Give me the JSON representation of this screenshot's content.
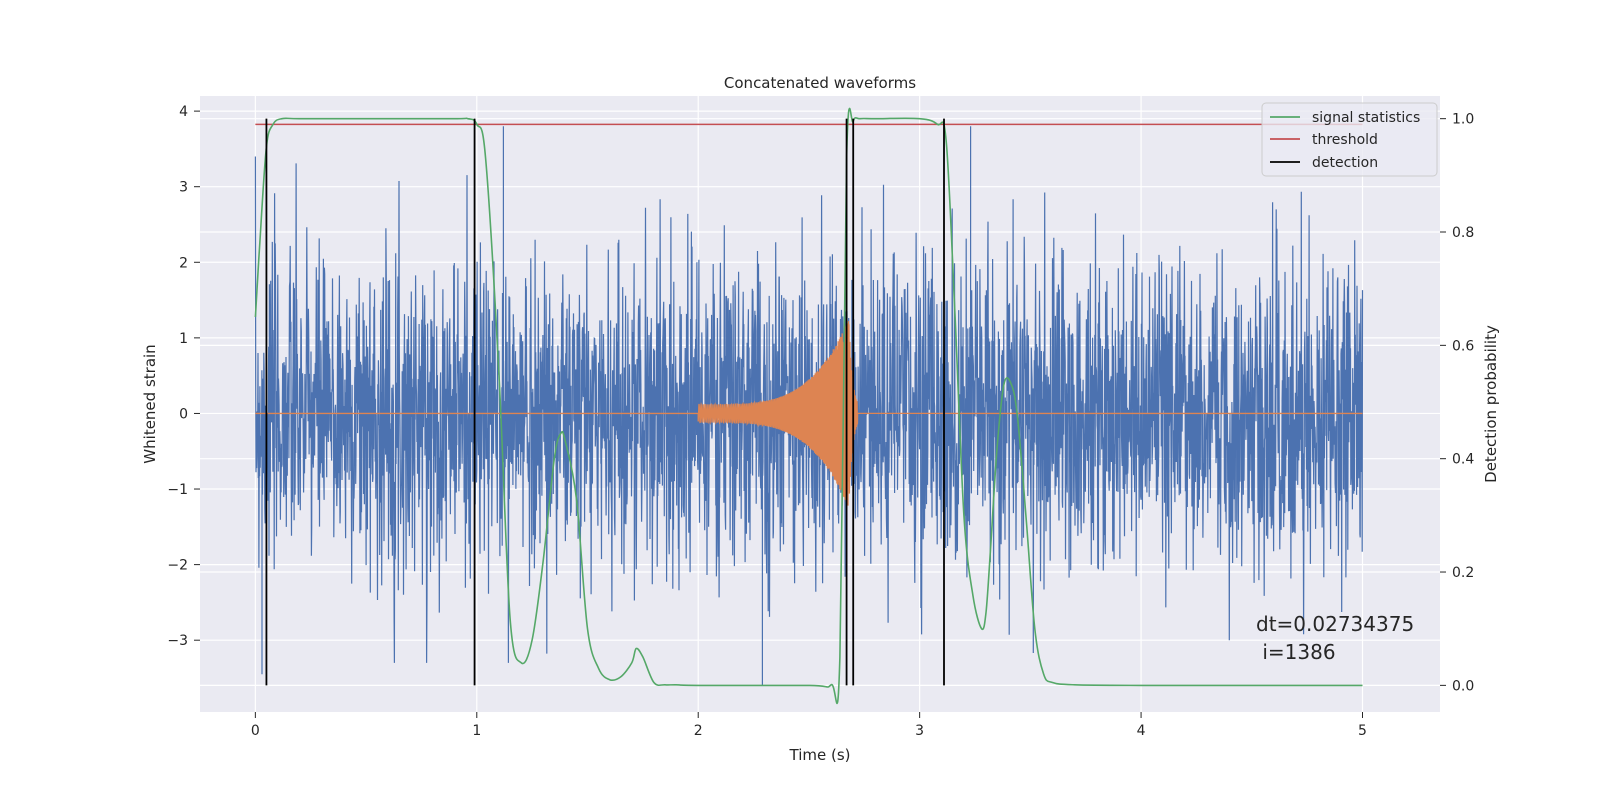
{
  "chart_data": {
    "type": "line",
    "title": "Concatenated waveforms",
    "xlabel": "Time (s)",
    "ylabel": "Whitened strain",
    "y2label": "Detection probability",
    "xlim": [
      -0.25,
      5.35
    ],
    "ylim": [
      -3.95,
      4.2
    ],
    "y2lim": [
      -0.047,
      1.04
    ],
    "x_ticks": [
      0,
      1,
      2,
      3,
      4,
      5
    ],
    "y_ticks": [
      -3,
      -2,
      -1,
      0,
      1,
      2,
      3,
      4
    ],
    "y2_ticks": [
      0.0,
      0.2,
      0.4,
      0.6,
      0.8,
      1.0
    ],
    "x_tick_labels": [
      "0",
      "1",
      "2",
      "3",
      "4",
      "5"
    ],
    "y_tick_labels": [
      "−3",
      "−2",
      "−1",
      "0",
      "1",
      "2",
      "3",
      "4"
    ],
    "y2_tick_labels": [
      "0.0",
      "0.2",
      "0.4",
      "0.6",
      "0.8",
      "1.0"
    ],
    "grid": true,
    "legend_position": "top-right",
    "colors": {
      "strain": "#4c72b0",
      "signal": "#dd8452",
      "statistics": "#55a868",
      "threshold": "#c44e52",
      "detection": "#000000",
      "background": "#eaeaf2",
      "grid": "#ffffff"
    },
    "series": [
      {
        "name": "signal statistics",
        "axis": "right",
        "color": "#55a868",
        "x": [
          0.0,
          0.02,
          0.05,
          0.08,
          0.12,
          0.2,
          0.5,
          0.9,
          0.96,
          1.0,
          1.04,
          1.1,
          1.15,
          1.2,
          1.25,
          1.3,
          1.35,
          1.38,
          1.4,
          1.45,
          1.5,
          1.55,
          1.6,
          1.65,
          1.7,
          1.72,
          1.75,
          1.8,
          1.85,
          1.9,
          2.0,
          2.5,
          2.6,
          2.64,
          2.67,
          2.7,
          2.73,
          2.8,
          3.0,
          3.08,
          3.12,
          3.16,
          3.2,
          3.24,
          3.28,
          3.3,
          3.32,
          3.35,
          3.38,
          3.41,
          3.44,
          3.48,
          3.52,
          3.56,
          3.6,
          3.7,
          4.0,
          4.5,
          5.0
        ],
        "y": [
          0.65,
          0.78,
          0.95,
          0.99,
          1.0,
          1.0,
          1.0,
          1.0,
          1.0,
          0.99,
          0.93,
          0.55,
          0.12,
          0.04,
          0.08,
          0.22,
          0.4,
          0.445,
          0.43,
          0.33,
          0.1,
          0.03,
          0.01,
          0.015,
          0.04,
          0.065,
          0.05,
          0.005,
          0.001,
          0.001,
          0.0,
          0.0,
          0.001,
          0.05,
          0.93,
          0.995,
          1.0,
          1.0,
          1.0,
          0.99,
          0.96,
          0.65,
          0.3,
          0.16,
          0.1,
          0.13,
          0.24,
          0.42,
          0.53,
          0.535,
          0.48,
          0.3,
          0.1,
          0.02,
          0.005,
          0.001,
          0.0,
          0.0,
          0.0
        ]
      },
      {
        "name": "threshold",
        "axis": "right",
        "color": "#c44e52",
        "x": [
          0.0,
          5.0
        ],
        "y": [
          0.99,
          0.99
        ]
      },
      {
        "name": "detection",
        "axis": "right",
        "color": "#000000",
        "segments_x": [
          0.05,
          0.99,
          2.67,
          2.7,
          3.11
        ],
        "y": [
          0.0,
          1.0
        ]
      },
      {
        "name": "",
        "axis": "left",
        "color": "#4c72b0",
        "description_x_range": [
          0.0,
          5.0
        ],
        "amplitude_typical": 1.0,
        "notable_peaks_y": [
          3.8,
          3.8,
          -3.45,
          -3.6
        ]
      },
      {
        "name": "",
        "axis": "left",
        "color": "#dd8452",
        "chirp_x_range": [
          2.0,
          2.72
        ],
        "chirp_amplitude_start": 0.12,
        "chirp_amplitude_peak": 1.25
      }
    ],
    "legend": [
      "signal statistics",
      "threshold",
      "detection"
    ],
    "annotation": {
      "line1": "dt=0.02734375",
      "line2": " i=1386"
    }
  }
}
